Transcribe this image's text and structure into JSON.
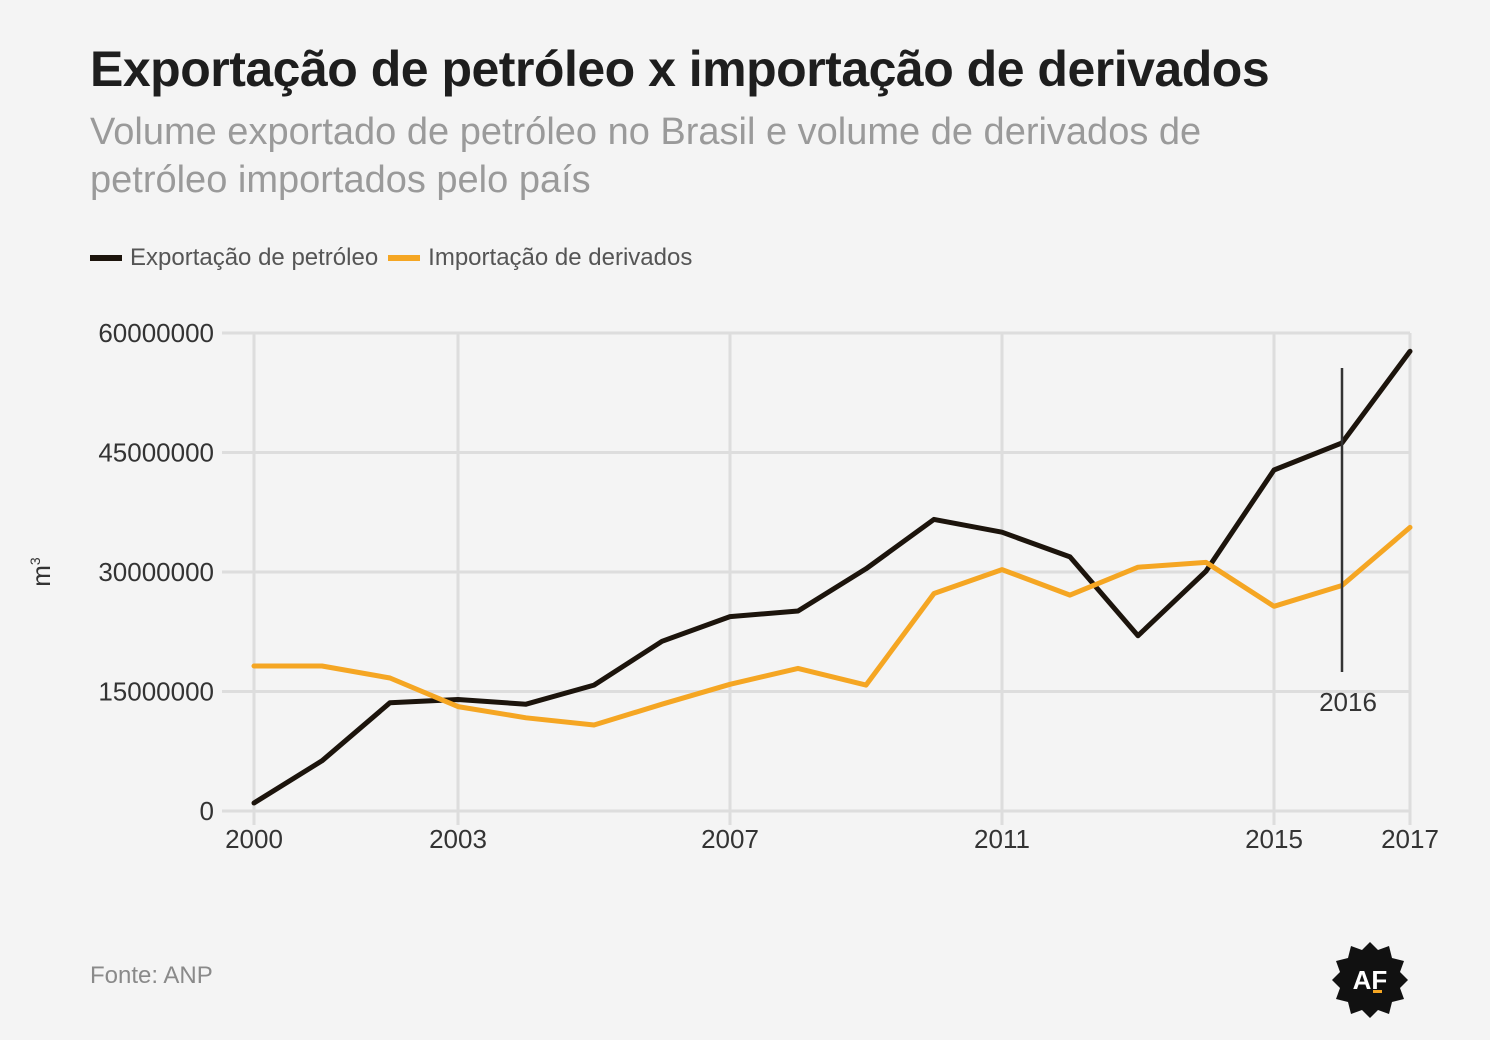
{
  "title": "Exportação de petróleo x importação de derivados",
  "subtitle": "Volume exportado de petróleo no Brasil e volume de derivados de petróleo importados pelo país",
  "source": "Fonte: ANP",
  "logo_text": "AF",
  "colors": {
    "export": "#1c140c",
    "import": "#f5a623",
    "grid": "#dddddd",
    "background": "#f4f4f4"
  },
  "chart_data": {
    "type": "line",
    "ylabel": "m³",
    "ylabel_base": "m",
    "ylabel_sup": "3",
    "xlim": [
      2000,
      2017
    ],
    "ylim": [
      0,
      60000000
    ],
    "yticks": [
      0,
      15000000,
      30000000,
      45000000,
      60000000
    ],
    "ytick_labels": [
      "0",
      "15000000",
      "30000000",
      "45000000",
      "60000000"
    ],
    "xticks": [
      2000,
      2003,
      2007,
      2011,
      2015,
      2017
    ],
    "xtick_labels": [
      "2000",
      "2003",
      "2007",
      "2011",
      "2015",
      "2017"
    ],
    "grid": true,
    "legend_position": "top-left",
    "annotation": {
      "x": 2016,
      "label": "2016"
    },
    "x": [
      2000,
      2001,
      2002,
      2003,
      2004,
      2005,
      2006,
      2007,
      2008,
      2009,
      2010,
      2011,
      2012,
      2013,
      2014,
      2015,
      2016,
      2017
    ],
    "series": [
      {
        "name": "Exportação de petróleo",
        "color": "#1c140c",
        "values": [
          1000000,
          6300000,
          13600000,
          14000000,
          13400000,
          15800000,
          21300000,
          24400000,
          25100000,
          30400000,
          36600000,
          35000000,
          31900000,
          22000000,
          30100000,
          42800000,
          46200000,
          57700000
        ]
      },
      {
        "name": "Importação de derivados",
        "color": "#f5a623",
        "values": [
          18200000,
          18200000,
          16700000,
          13100000,
          11700000,
          10800000,
          13400000,
          15900000,
          17900000,
          15800000,
          27300000,
          30300000,
          27100000,
          30600000,
          31200000,
          25700000,
          28300000,
          35600000
        ]
      }
    ]
  }
}
